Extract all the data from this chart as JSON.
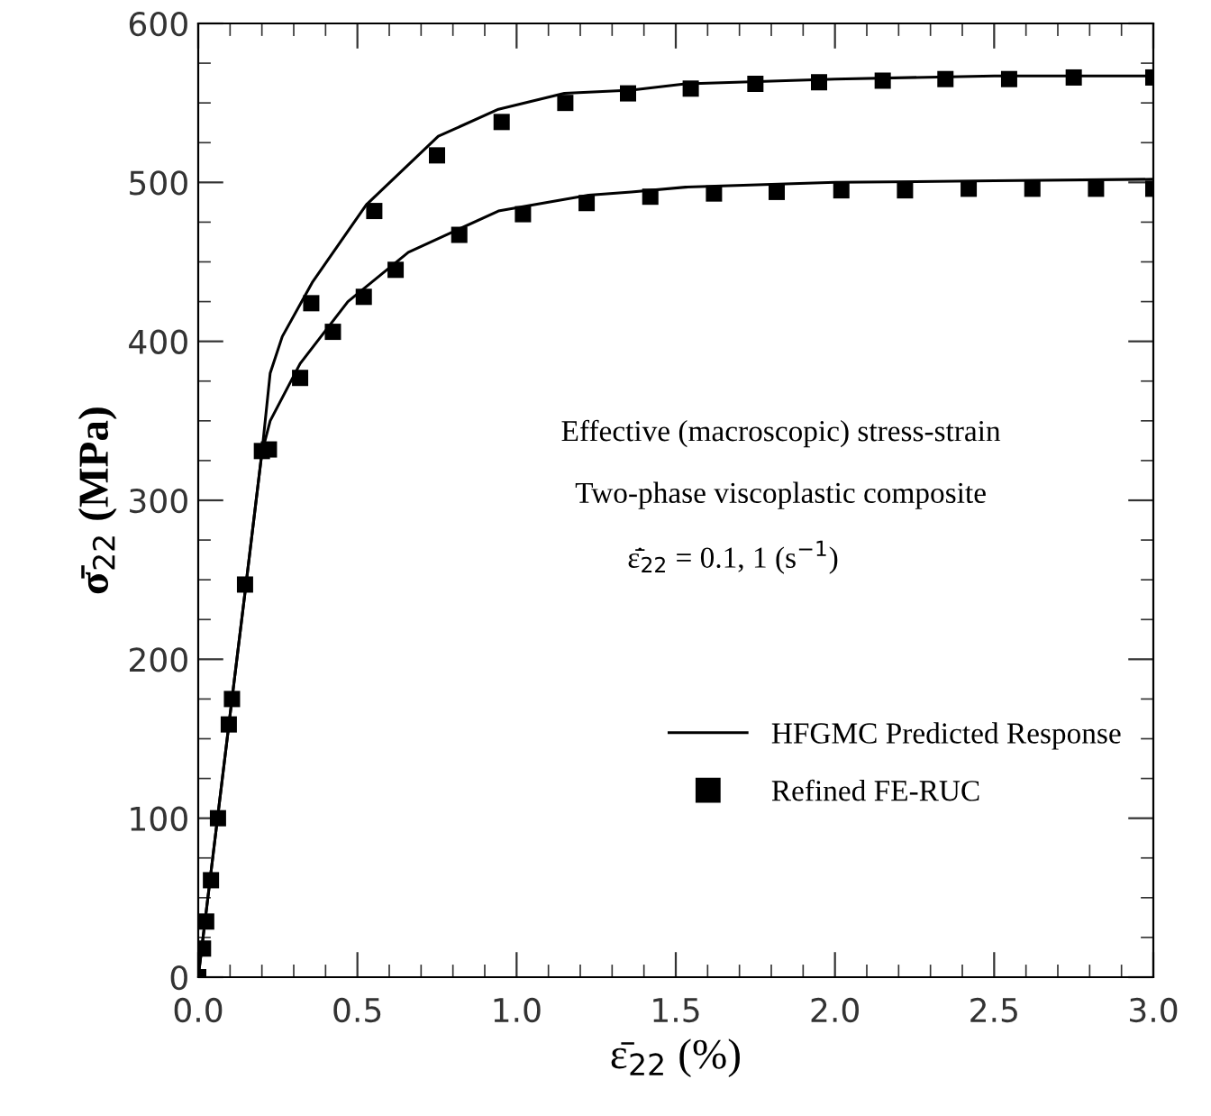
{
  "chart_data": {
    "type": "line",
    "xlabel": "ε̄$_{22}$ (%)",
    "ylabel": "σ̄$_{22}$ (MPa)",
    "annotations": [
      "Effective (macroscopic) stress-strain",
      "Two-phase viscoplastic composite",
      "ε̄̇$_{22}$ = 0.1, 1 (s$^{−1}$)"
    ],
    "series": [
      {
        "name": "HFGMC Predicted Response",
        "color": "#000000",
        "marker": "none",
        "line_style": "solid",
        "x": [
          0,
          0.1,
          0.15,
          0.2,
          0.226,
          0.264,
          0.358,
          0.528,
          0.754,
          0.943,
          1.15,
          1.36,
          1.53,
          2.0,
          2.5,
          3.0
        ],
        "values": [
          0,
          165,
          247,
          330,
          380,
          403,
          437,
          486,
          529,
          546,
          556,
          558,
          562,
          565,
          567,
          567
        ]
      },
      {
        "color": "#000000",
        "marker": "none",
        "line_style": "solid",
        "x": [
          0,
          0.1,
          0.15,
          0.2,
          0.226,
          0.32,
          0.47,
          0.66,
          0.943,
          1.226,
          1.36,
          1.53,
          2.0,
          2.5,
          3.0
        ],
        "values": [
          0,
          165,
          247,
          330,
          350,
          386,
          425,
          456,
          482,
          492,
          494,
          497,
          500,
          501,
          502
        ]
      },
      {
        "name": "Refined FE-RUC",
        "type": "scatter",
        "color": "#000000",
        "marker": "square",
        "x": [
          0,
          0.015,
          0.025,
          0.04,
          0.062,
          0.096,
          0.106,
          0.147,
          0.2,
          0.355,
          0.553,
          0.75,
          0.953,
          1.153,
          1.35,
          1.547,
          1.75,
          1.95,
          2.15,
          2.347,
          2.547,
          2.75,
          3.0
        ],
        "values": [
          0,
          18,
          35,
          61,
          100,
          159,
          175,
          247,
          331,
          424,
          482,
          517,
          538,
          550,
          556,
          559,
          562,
          563,
          564,
          565,
          565,
          566,
          566
        ]
      },
      {
        "type": "scatter",
        "color": "#000000",
        "marker": "square",
        "x": [
          0.222,
          0.32,
          0.423,
          0.52,
          0.62,
          0.82,
          1.02,
          1.22,
          1.42,
          1.62,
          1.817,
          2.02,
          2.22,
          2.42,
          2.62,
          2.82,
          3.0
        ],
        "values": [
          332,
          377,
          406,
          428,
          445,
          467,
          480,
          487,
          491,
          493,
          494,
          495,
          495,
          496,
          496,
          496,
          496
        ]
      }
    ],
    "xlim": [
      0,
      3.0
    ],
    "xticks": [
      {
        "value": 0,
        "label": "0.0"
      },
      0.5,
      {
        "value": 1,
        "label": "1.0"
      },
      1.5,
      {
        "value": 2,
        "label": "2.0"
      },
      2.5,
      {
        "value": 3,
        "label": "3.0"
      }
    ],
    "ylim": [
      0,
      600
    ],
    "yticks": [
      0,
      100,
      200,
      300,
      400,
      500,
      600
    ],
    "grid": false,
    "legend": "bottom right"
  }
}
